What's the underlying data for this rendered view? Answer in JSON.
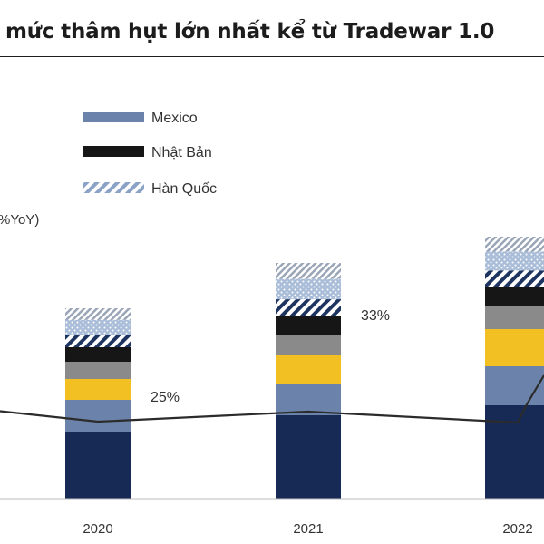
{
  "colors": {
    "navy": "#172a55",
    "steel_blue": "#6b83aa",
    "yellow": "#f2c023",
    "gray": "#8a8a8a",
    "black": "#161616",
    "light_blue": "#a9bdd9",
    "line": "#2b2b2b"
  },
  "chart_data": {
    "type": "bar",
    "title": "mức thâm hụt lớn nhất kể từ Tradewar 1.0",
    "ylabel": "%YoY)",
    "categories": [
      "2020",
      "2021",
      "2022"
    ],
    "legend": {
      "placement": "top-left",
      "entries": [
        "Mexico",
        "Nhật Bản",
        "Hàn Quốc"
      ]
    },
    "series": [
      {
        "name": "",
        "color_key": "navy",
        "values": [
          73,
          92,
          103
        ]
      },
      {
        "name": "Mexico",
        "color_key": "steel_blue",
        "values": [
          36,
          34,
          43
        ]
      },
      {
        "name": "",
        "color_key": "yellow",
        "values": [
          23,
          32,
          41
        ]
      },
      {
        "name": "",
        "color_key": "gray",
        "values": [
          19,
          22,
          25
        ]
      },
      {
        "name": "Nhật Bản",
        "color_key": "black",
        "values": [
          16,
          21,
          22
        ]
      },
      {
        "name": "Hàn Quốc",
        "color_key": "light_blue",
        "values": [
          43,
          59,
          55
        ]
      }
    ],
    "line": {
      "name": "%YoY",
      "values": [
        85,
        96,
        84
      ]
    },
    "annotations": [
      {
        "category": "2020",
        "text": "25%"
      },
      {
        "category": "2021",
        "text": "33%"
      }
    ],
    "grid": false
  }
}
